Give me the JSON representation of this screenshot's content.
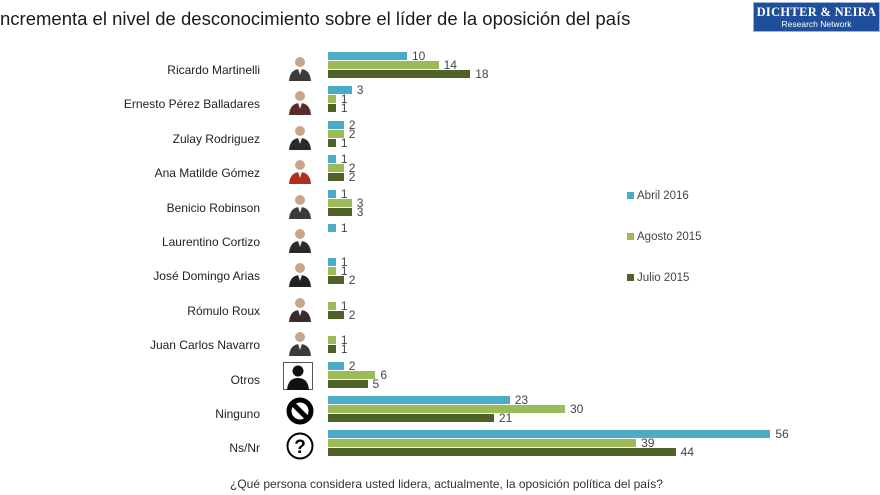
{
  "header": {
    "title": "ncrementa el nivel de desconocimiento sobre el líder de la oposición del país",
    "logo_line1": "DICHTER & NEIRA",
    "logo_line2": "Research Network"
  },
  "legend": [
    {
      "label": "Abril 2016",
      "color": "#4bacc6"
    },
    {
      "label": "Agosto 2015",
      "color": "#9bbb59"
    },
    {
      "label": "Julio 2015",
      "color": "#4f6228"
    }
  ],
  "footer": {
    "question": "¿Qué persona considera usted lidera, actualmente, la oposición política del país?"
  },
  "chart_data": {
    "type": "bar",
    "orientation": "horizontal",
    "title": "ncrementa el nivel de desconocimiento sobre el líder de la oposición del país",
    "xlabel": "",
    "ylabel": "",
    "caption": "¿Qué persona considera usted lidera, actualmente, la oposición política del país?",
    "legend_position": "right",
    "grid": false,
    "categories": [
      "Ricardo Martinelli",
      "Ernesto Pérez Balladares",
      "Zulay Rodriguez",
      "Ana Matilde Gómez",
      "Benicio Robinson",
      "Laurentino Cortizo",
      "José Domingo Arias",
      "Rómulo Roux",
      "Juan Carlos Navarro",
      "Otros",
      "Ninguno",
      "Ns/Nr"
    ],
    "series": [
      {
        "name": "Abril 2016",
        "color": "#4bacc6",
        "values": [
          10,
          3,
          2,
          1,
          1,
          1,
          1,
          null,
          null,
          2,
          23,
          56
        ]
      },
      {
        "name": "Agosto 2015",
        "color": "#9bbb59",
        "values": [
          14,
          1,
          2,
          2,
          3,
          null,
          1,
          1,
          1,
          6,
          30,
          39
        ]
      },
      {
        "name": "Julio 2015",
        "color": "#4f6228",
        "values": [
          18,
          1,
          1,
          2,
          3,
          null,
          2,
          2,
          1,
          5,
          21,
          44
        ]
      }
    ],
    "icons": [
      "photo",
      "photo",
      "photo",
      "photo",
      "photo",
      "photo",
      "photo",
      "photo",
      "photo",
      "silhouette-icon",
      "no-entry-icon",
      "question-icon"
    ]
  }
}
